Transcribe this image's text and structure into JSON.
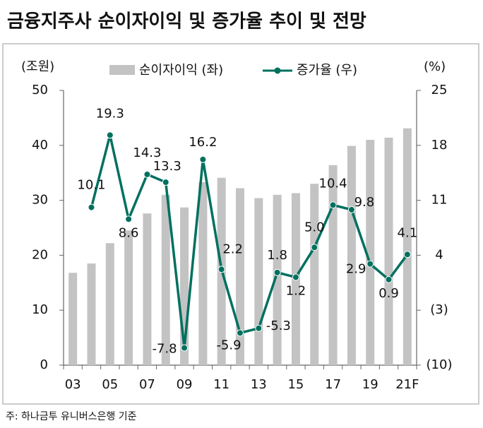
{
  "chart_data": {
    "type": "bar",
    "title": "금융지주사 순이자이익 및 증가율 추이 및 전망",
    "y_label": "(조원)",
    "y2_label": "(%)",
    "footnote": "주: 하나금투 유니버스은행 기준",
    "categories": [
      "03",
      null,
      "05",
      null,
      "07",
      null,
      "09",
      null,
      "11",
      null,
      "13",
      null,
      "15",
      null,
      "17",
      null,
      "19",
      null,
      "21F"
    ],
    "series": [
      {
        "name": "순이자이익 (좌)",
        "type": "bar",
        "color": "#c3c3c3",
        "values": [
          16.8,
          18.5,
          22.2,
          24.5,
          27.6,
          31.0,
          28.7,
          33.3,
          34.1,
          32.2,
          30.4,
          31.0,
          31.3,
          33.0,
          36.4,
          39.9,
          41.0,
          41.4,
          43.1
        ]
      },
      {
        "name": "증가율 (우)",
        "type": "line",
        "axis": "y2",
        "color": "#00705f",
        "values": [
          null,
          10.1,
          19.3,
          8.6,
          14.3,
          13.3,
          -7.8,
          16.2,
          2.2,
          -5.9,
          -5.3,
          1.8,
          1.2,
          5.0,
          10.4,
          9.8,
          2.9,
          0.9,
          4.1
        ],
        "value_labels": [
          null,
          "10.1",
          "19.3",
          "8.6",
          "14.3",
          "13.3",
          "-7.8",
          "16.2",
          "2.2",
          "-5.9",
          "-5.3",
          "1.8",
          "1.2",
          "5.0",
          "10.4",
          "9.8",
          "2.9",
          "0.9",
          "4.1"
        ]
      }
    ],
    "ylim": [
      0,
      50
    ],
    "yticks": [
      0,
      10,
      20,
      30,
      40,
      50
    ],
    "y2lim": [
      -10,
      25
    ],
    "y2ticks": [
      {
        "value": -10,
        "label": "(10)"
      },
      {
        "value": -3,
        "label": "(3)"
      },
      4,
      11,
      18,
      25
    ]
  }
}
